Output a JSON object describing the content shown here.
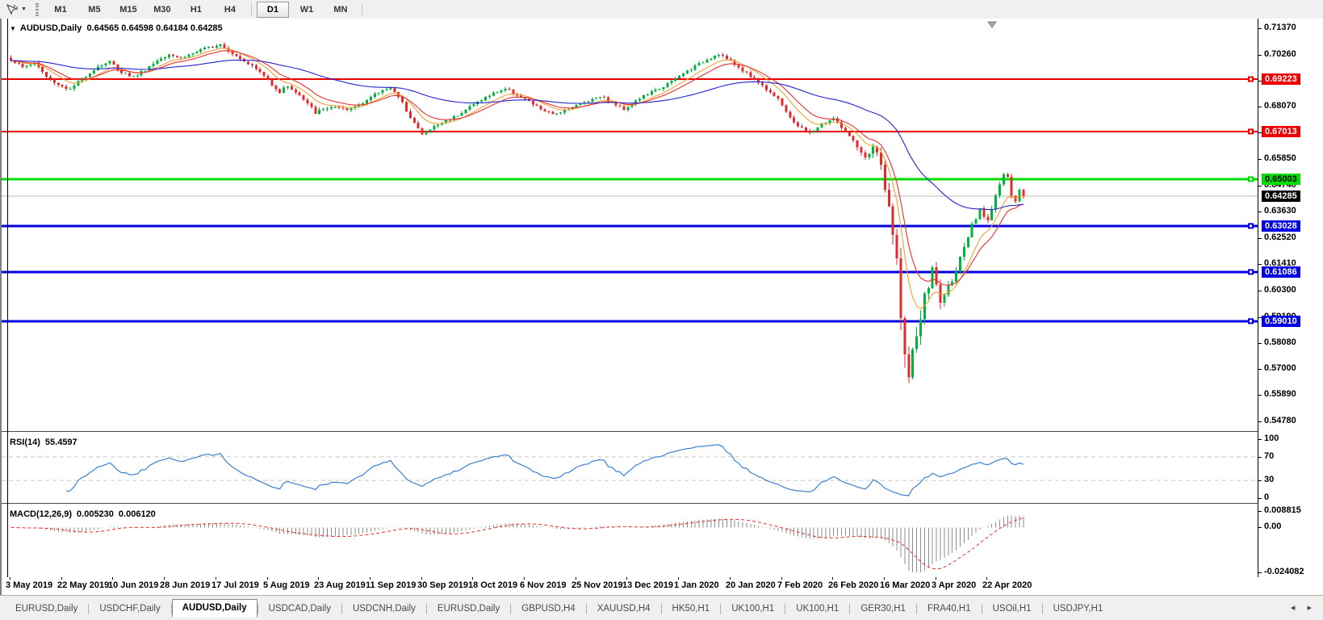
{
  "toolbar": {
    "tool_icon": "crosshair-cursor",
    "dropdown_caret": "▼",
    "timeframes": [
      "M1",
      "M5",
      "M15",
      "M30",
      "H1",
      "H4",
      "D1",
      "W1",
      "MN"
    ],
    "active_timeframe": "D1"
  },
  "chart": {
    "symbol_caret": "▼",
    "title_symbol": "AUDUSD,Daily",
    "title_ohlc": "0.64565 0.64598 0.64184 0.64285"
  },
  "chart_data": {
    "type": "candlestick",
    "symbol": "AUDUSD",
    "timeframe": "Daily",
    "last_bar": {
      "open": 0.64565,
      "high": 0.64598,
      "low": 0.64184,
      "close": 0.64285
    },
    "price_axis": {
      "max": 0.7137,
      "min": 0.5478,
      "ticks": [
        "0.71370",
        "0.70260",
        "0.69150",
        "0.68070",
        "0.66960",
        "0.65850",
        "0.64740",
        "0.63630",
        "0.62520",
        "0.61410",
        "0.60300",
        "0.59190",
        "0.58080",
        "0.57000",
        "0.55890",
        "0.54780"
      ]
    },
    "hlines": [
      {
        "price": 0.69223,
        "label": "0.69223",
        "color": "#ee0000",
        "text_color": "#ffffff",
        "width": 2
      },
      {
        "price": 0.67013,
        "label": "0.67013",
        "color": "#ee0000",
        "text_color": "#ffffff",
        "width": 2
      },
      {
        "price": 0.65003,
        "label": "0.65003",
        "color": "#00dd00",
        "text_color": "#000000",
        "width": 3
      },
      {
        "price": 0.63028,
        "label": "0.63028",
        "color": "#0000e0",
        "text_color": "#ffffff",
        "width": 3
      },
      {
        "price": 0.61086,
        "label": "0.61086",
        "color": "#0000e0",
        "text_color": "#ffffff",
        "width": 3
      },
      {
        "price": 0.5901,
        "label": "0.59010",
        "color": "#0000e0",
        "text_color": "#ffffff",
        "width": 3
      }
    ],
    "current_price": {
      "value": 0.64285,
      "label": "0.64285",
      "line_color": "#b8b8b8",
      "box_color": "#000000",
      "text_color": "#ffffff"
    },
    "candles": {
      "count": 257,
      "up_color": "#00b33c",
      "down_color": "#e22b2b",
      "path_anchors": [
        [
          0,
          0.7005,
          0.0016
        ],
        [
          3,
          0.6972,
          0.0016
        ],
        [
          6,
          0.6992,
          0.0015
        ],
        [
          9,
          0.6932,
          0.0016
        ],
        [
          12,
          0.69,
          0.0016
        ],
        [
          15,
          0.6878,
          0.0016
        ],
        [
          18,
          0.6925,
          0.0015
        ],
        [
          22,
          0.6976,
          0.0015
        ],
        [
          25,
          0.6996,
          0.0015
        ],
        [
          28,
          0.6952,
          0.0015
        ],
        [
          31,
          0.6932,
          0.0015
        ],
        [
          34,
          0.6962,
          0.0015
        ],
        [
          37,
          0.7002,
          0.0015
        ],
        [
          40,
          0.703,
          0.0015
        ],
        [
          43,
          0.7012,
          0.0015
        ],
        [
          47,
          0.7038,
          0.0015
        ],
        [
          50,
          0.7056,
          0.0015
        ],
        [
          53,
          0.7072,
          0.0016
        ],
        [
          56,
          0.7032,
          0.0016
        ],
        [
          60,
          0.699,
          0.0015
        ],
        [
          63,
          0.6952,
          0.0015
        ],
        [
          66,
          0.6902,
          0.0017
        ],
        [
          68,
          0.6868,
          0.0017
        ],
        [
          70,
          0.6895,
          0.0015
        ],
        [
          73,
          0.6852,
          0.0016
        ],
        [
          77,
          0.6782,
          0.0018
        ],
        [
          81,
          0.6806,
          0.0015
        ],
        [
          85,
          0.679,
          0.0014
        ],
        [
          89,
          0.6826,
          0.0014
        ],
        [
          93,
          0.6866,
          0.0014
        ],
        [
          96,
          0.6892,
          0.0014
        ],
        [
          99,
          0.682,
          0.0016
        ],
        [
          102,
          0.6738,
          0.0016
        ],
        [
          104,
          0.6688,
          0.0016
        ],
        [
          107,
          0.6722,
          0.0014
        ],
        [
          110,
          0.6746,
          0.0014
        ],
        [
          113,
          0.6772,
          0.0014
        ],
        [
          116,
          0.6806,
          0.0014
        ],
        [
          119,
          0.6836,
          0.0014
        ],
        [
          122,
          0.6862,
          0.0014
        ],
        [
          125,
          0.6882,
          0.0014
        ],
        [
          128,
          0.6856,
          0.0014
        ],
        [
          131,
          0.6826,
          0.0014
        ],
        [
          134,
          0.6796,
          0.0014
        ],
        [
          137,
          0.6772,
          0.0014
        ],
        [
          140,
          0.6792,
          0.0013
        ],
        [
          143,
          0.6812,
          0.0013
        ],
        [
          146,
          0.6832,
          0.0013
        ],
        [
          149,
          0.6852,
          0.0013
        ],
        [
          152,
          0.6822,
          0.0013
        ],
        [
          155,
          0.6796,
          0.0013
        ],
        [
          158,
          0.683,
          0.0013
        ],
        [
          161,
          0.686,
          0.0013
        ],
        [
          164,
          0.6882,
          0.0013
        ],
        [
          167,
          0.6912,
          0.0013
        ],
        [
          170,
          0.6946,
          0.0013
        ],
        [
          173,
          0.6976,
          0.0013
        ],
        [
          176,
          0.7006,
          0.0013
        ],
        [
          179,
          0.703,
          0.0014
        ],
        [
          182,
          0.6996,
          0.0014
        ],
        [
          185,
          0.696,
          0.0014
        ],
        [
          188,
          0.6922,
          0.0014
        ],
        [
          191,
          0.6882,
          0.0014
        ],
        [
          194,
          0.6842,
          0.0014
        ],
        [
          196,
          0.6778,
          0.0015
        ],
        [
          199,
          0.6726,
          0.0015
        ],
        [
          202,
          0.6692,
          0.0015
        ],
        [
          205,
          0.6732,
          0.0015
        ],
        [
          208,
          0.6756,
          0.0015
        ],
        [
          211,
          0.67,
          0.0017
        ],
        [
          214,
          0.6632,
          0.0022
        ],
        [
          216,
          0.6584,
          0.0026
        ],
        [
          218,
          0.6642,
          0.003
        ],
        [
          220,
          0.6562,
          0.004
        ],
        [
          222,
          0.6364,
          0.006
        ],
        [
          224,
          0.6152,
          0.0085
        ],
        [
          226,
          0.5752,
          0.011
        ],
        [
          227,
          0.5648,
          0.012
        ],
        [
          229,
          0.5846,
          0.0095
        ],
        [
          231,
          0.5992,
          0.007
        ],
        [
          233,
          0.6118,
          0.0055
        ],
        [
          235,
          0.5982,
          0.0045
        ],
        [
          237,
          0.6042,
          0.004
        ],
        [
          239,
          0.6122,
          0.0035
        ],
        [
          241,
          0.6202,
          0.003
        ],
        [
          243,
          0.6302,
          0.0028
        ],
        [
          245,
          0.6366,
          0.0026
        ],
        [
          247,
          0.633,
          0.0024
        ],
        [
          249,
          0.6432,
          0.0024
        ],
        [
          251,
          0.6522,
          0.0026
        ],
        [
          252,
          0.6502,
          0.0022
        ],
        [
          253,
          0.6432,
          0.002
        ],
        [
          254,
          0.6402,
          0.0018
        ],
        [
          255,
          0.64565,
          0.0016
        ],
        [
          256,
          0.64285,
          0.001
        ]
      ]
    },
    "moving_averages": [
      {
        "type": "EMA",
        "period": 8,
        "color": "#f0a030"
      },
      {
        "type": "EMA",
        "period": 13,
        "color": "#e83030"
      },
      {
        "type": "EMA",
        "period": 55,
        "color": "#2525d0"
      }
    ],
    "rsi": {
      "label": "RSI(14)",
      "value": "55.4597",
      "period": 14,
      "color": "#3c7fd0",
      "axis_labels": [
        "100",
        "70",
        "30",
        "0"
      ],
      "axis_values": [
        100,
        70,
        30,
        0
      ],
      "upper_level": 70,
      "lower_level": 30
    },
    "macd": {
      "label": "MACD(12,26,9)",
      "value_main": "0.005230",
      "value_signal": "0.006120",
      "fast": 12,
      "slow": 26,
      "signal": 9,
      "axis_max": 0.008815,
      "axis_min": -0.024082,
      "axis_labels": [
        "0.008815",
        "0.00",
        "-0.024082"
      ],
      "hist_color": "#8c8c8c",
      "signal_color": "#e03030"
    },
    "date_axis": [
      "3 May 2019",
      "22 May 2019",
      "10 Jun 2019",
      "28 Jun 2019",
      "17 Jul 2019",
      "5 Aug 2019",
      "23 Aug 2019",
      "11 Sep 2019",
      "30 Sep 2019",
      "18 Oct 2019",
      "6 Nov 2019",
      "25 Nov 2019",
      "13 Dec 2019",
      "1 Jan 2020",
      "20 Jan 2020",
      "7 Feb 2020",
      "26 Feb 2020",
      "16 Mar 2020",
      "3 Apr 2020",
      "22 Apr 2020"
    ],
    "shift_marker_color": "#a8a8a8"
  },
  "tabs": {
    "items": [
      "EURUSD,Daily",
      "USDCHF,Daily",
      "AUDUSD,Daily",
      "USDCAD,Daily",
      "USDCNH,Daily",
      "EURUSD,Daily",
      "GBPUSD,H4",
      "XAUUSD,H4",
      "HK50,H1",
      "UK100,H1",
      "UK100,H1",
      "GER30,H1",
      "FRA40,H1",
      "USOil,H1",
      "USDJPY,H1"
    ],
    "active_index": 2,
    "arrows": "◂ ▸"
  }
}
